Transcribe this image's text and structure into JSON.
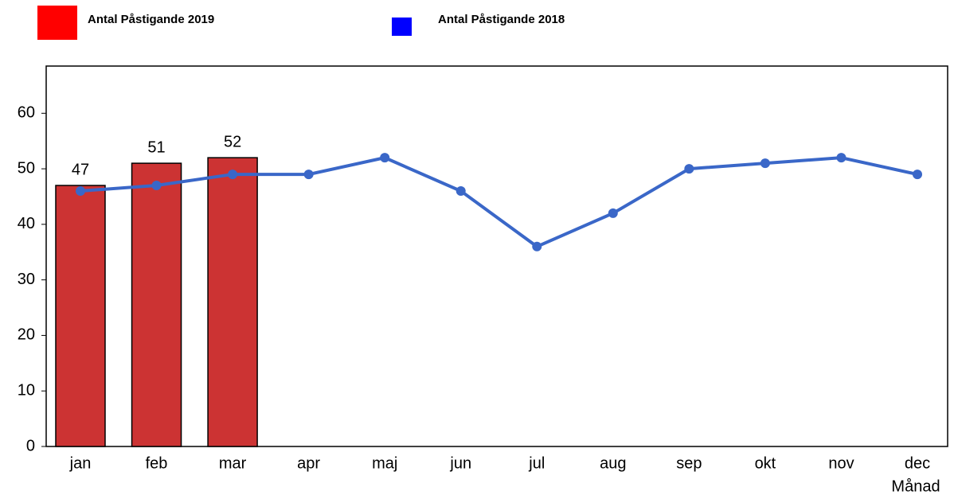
{
  "chart_data": {
    "type": "bar-line",
    "x_label": "Månad",
    "categories": [
      "jan",
      "feb",
      "mar",
      "apr",
      "maj",
      "jun",
      "jul",
      "aug",
      "sep",
      "okt",
      "nov",
      "dec"
    ],
    "series": [
      {
        "name": "Antal Påstigande 2019",
        "type": "bar",
        "color": "#cc3333",
        "legend_color": "#ff0000",
        "show_labels": true,
        "values": [
          47,
          51,
          52,
          null,
          null,
          null,
          null,
          null,
          null,
          null,
          null,
          null
        ]
      },
      {
        "name": "Antal Påstigande 2018",
        "type": "line",
        "color": "#3a67c8",
        "legend_color": "#0000ff",
        "show_labels": false,
        "values": [
          46,
          47,
          49,
          49,
          52,
          46,
          36,
          42,
          50,
          51,
          52,
          49
        ]
      }
    ],
    "ylim": [
      0,
      68.5
    ],
    "yticks": [
      0,
      10,
      20,
      30,
      40,
      50,
      60
    ],
    "grid": false
  }
}
